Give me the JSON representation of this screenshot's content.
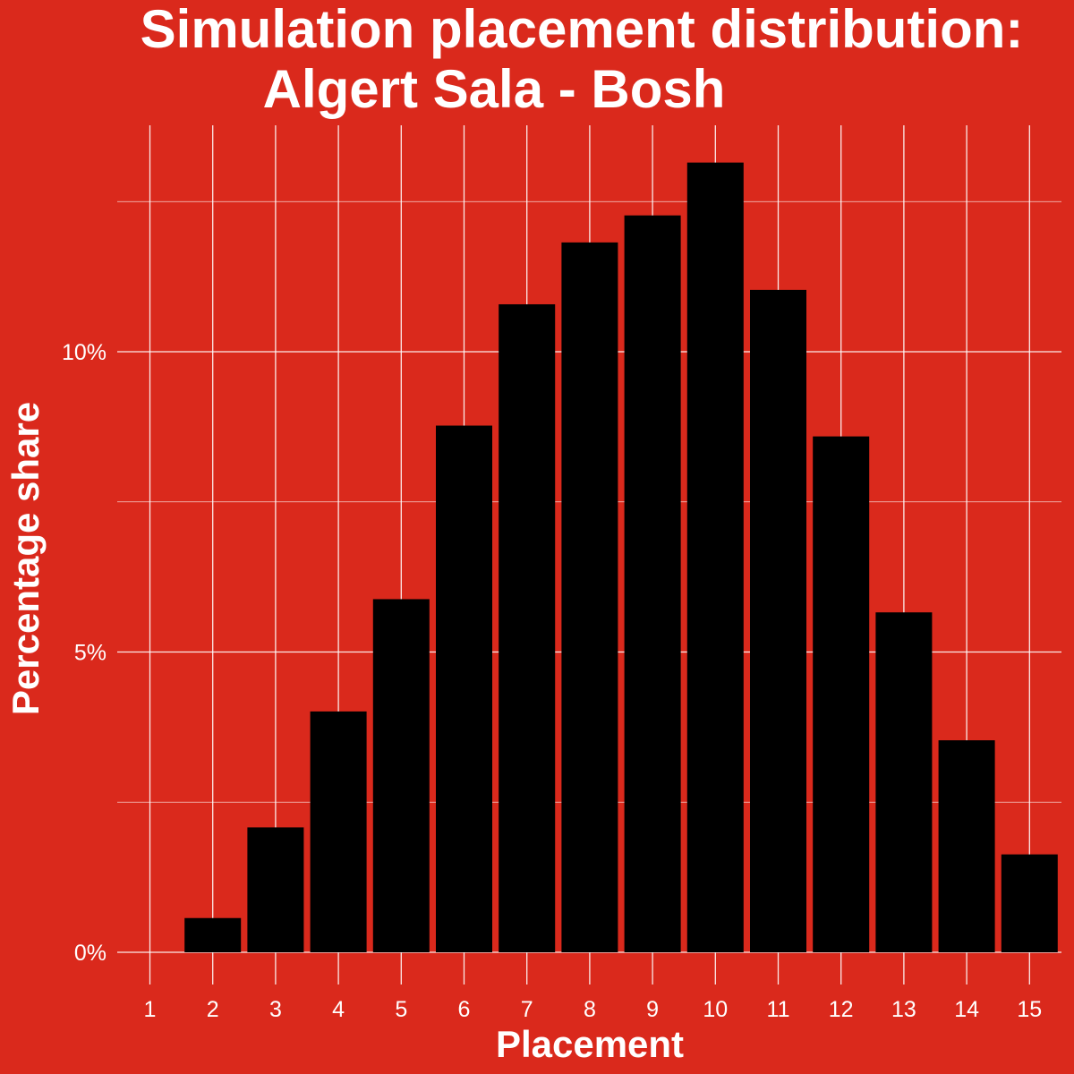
{
  "chart_data": {
    "type": "bar",
    "title": [
      "Simulation placement distribution:",
      "Algert Sala - Bosh"
    ],
    "xlabel": "Placement",
    "ylabel": "Percentage share",
    "categories": [
      "1",
      "2",
      "3",
      "4",
      "5",
      "6",
      "7",
      "8",
      "9",
      "10",
      "11",
      "12",
      "13",
      "14",
      "15"
    ],
    "values": [
      0.0,
      0.57,
      2.08,
      4.01,
      5.88,
      8.77,
      10.79,
      11.82,
      12.27,
      13.15,
      11.03,
      8.59,
      5.66,
      3.53,
      1.63
    ],
    "value_unit": "%",
    "ylim": [
      0,
      13.8
    ],
    "yticks": [
      {
        "value": 0,
        "label": "0%"
      },
      {
        "value": 5,
        "label": "5%"
      },
      {
        "value": 10,
        "label": "10%"
      }
    ],
    "yminor": [
      2.5,
      7.5,
      12.5
    ],
    "grid": true,
    "legend": "none",
    "colors": {
      "background": "#DA291C",
      "bar": "#000000",
      "text": "#FFFFFF",
      "grid": "#FFFFFF"
    }
  }
}
